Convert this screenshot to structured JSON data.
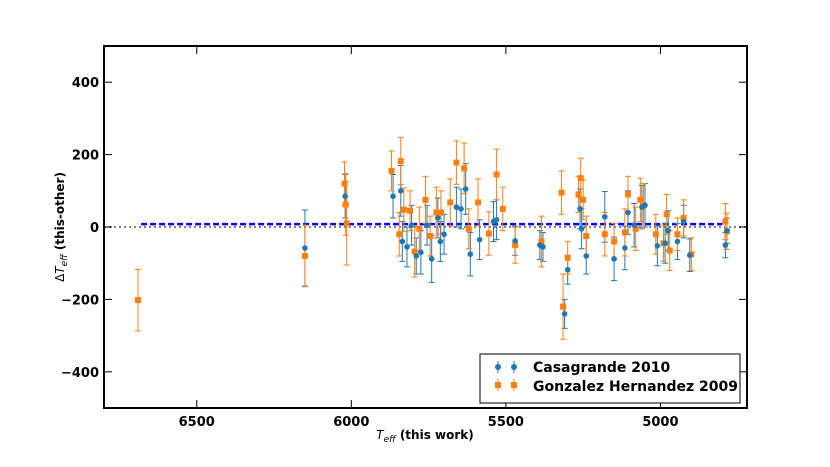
{
  "chart_data": {
    "type": "scatter",
    "xlabel": "T_eff (this work)",
    "ylabel": "ΔT_eff (this-other)",
    "xlim": [
      6800,
      4720
    ],
    "ylim": [
      -500,
      500
    ],
    "x_ticks": [
      6500,
      6000,
      5500,
      5000
    ],
    "y_ticks": [
      -400,
      -200,
      0,
      200,
      400
    ],
    "legend_position": "lower-right",
    "reference_lines": [
      {
        "name": "zero",
        "y": 0,
        "color": "#808080",
        "style": "dotted"
      },
      {
        "name": "mean offset",
        "y": 8,
        "x_range": [
          6680,
          4800
        ],
        "color": "#0000ff",
        "style": "dashed"
      }
    ],
    "series": [
      {
        "name": "Casagrande 2010",
        "marker": "circle",
        "color": "#1f77b4",
        "points": [
          {
            "x": 6150,
            "y": -58,
            "err": 105
          },
          {
            "x": 6020,
            "y": 85,
            "err": 60
          },
          {
            "x": 5865,
            "y": 85,
            "err": 60
          },
          {
            "x": 5840,
            "y": 100,
            "err": 70
          },
          {
            "x": 5835,
            "y": -40,
            "err": 55
          },
          {
            "x": 5820,
            "y": -55,
            "err": 55
          },
          {
            "x": 5805,
            "y": 5,
            "err": 55
          },
          {
            "x": 5790,
            "y": -80,
            "err": 50
          },
          {
            "x": 5775,
            "y": -70,
            "err": 60
          },
          {
            "x": 5755,
            "y": 5,
            "err": 55
          },
          {
            "x": 5740,
            "y": -88,
            "err": 65
          },
          {
            "x": 5720,
            "y": 25,
            "err": 55
          },
          {
            "x": 5712,
            "y": -40,
            "err": 55
          },
          {
            "x": 5700,
            "y": -20,
            "err": 55
          },
          {
            "x": 5660,
            "y": 55,
            "err": 55
          },
          {
            "x": 5645,
            "y": 50,
            "err": 55
          },
          {
            "x": 5630,
            "y": 105,
            "err": 70
          },
          {
            "x": 5615,
            "y": -75,
            "err": 60
          },
          {
            "x": 5585,
            "y": -35,
            "err": 55
          },
          {
            "x": 5540,
            "y": 15,
            "err": 55
          },
          {
            "x": 5530,
            "y": 20,
            "err": 55
          },
          {
            "x": 5470,
            "y": -38,
            "err": 40
          },
          {
            "x": 5390,
            "y": -50,
            "err": 40
          },
          {
            "x": 5380,
            "y": -55,
            "err": 40
          },
          {
            "x": 5310,
            "y": -240,
            "err": 40
          },
          {
            "x": 5300,
            "y": -118,
            "err": 40
          },
          {
            "x": 5260,
            "y": 50,
            "err": 55
          },
          {
            "x": 5255,
            "y": -5,
            "err": 55
          },
          {
            "x": 5240,
            "y": -80,
            "err": 50
          },
          {
            "x": 5180,
            "y": 28,
            "err": 70
          },
          {
            "x": 5150,
            "y": -88,
            "err": 60
          },
          {
            "x": 5115,
            "y": -58,
            "err": 60
          },
          {
            "x": 5105,
            "y": 40,
            "err": 60
          },
          {
            "x": 5085,
            "y": 5,
            "err": 60
          },
          {
            "x": 5060,
            "y": 55,
            "err": 60
          },
          {
            "x": 5050,
            "y": 60,
            "err": 60
          },
          {
            "x": 5010,
            "y": -52,
            "err": 55
          },
          {
            "x": 4985,
            "y": -45,
            "err": 55
          },
          {
            "x": 4975,
            "y": -10,
            "err": 55
          },
          {
            "x": 4945,
            "y": -40,
            "err": 50
          },
          {
            "x": 4925,
            "y": 15,
            "err": 45
          },
          {
            "x": 4905,
            "y": -78,
            "err": 45
          },
          {
            "x": 4790,
            "y": -50,
            "err": 35
          },
          {
            "x": 4785,
            "y": -10,
            "err": 35
          }
        ]
      },
      {
        "name": "Gonzalez Hernandez 2009",
        "marker": "square",
        "color": "#ff7f0e",
        "points": [
          {
            "x": 6690,
            "y": -202,
            "err": 85
          },
          {
            "x": 6150,
            "y": -80,
            "err": 85
          },
          {
            "x": 6022,
            "y": 120,
            "err": 60
          },
          {
            "x": 6018,
            "y": 62,
            "err": 85
          },
          {
            "x": 6015,
            "y": 10,
            "err": 115
          },
          {
            "x": 5870,
            "y": 155,
            "err": 55
          },
          {
            "x": 5845,
            "y": -20,
            "err": 60
          },
          {
            "x": 5840,
            "y": 182,
            "err": 65
          },
          {
            "x": 5830,
            "y": 48,
            "err": 60
          },
          {
            "x": 5810,
            "y": 45,
            "err": 55
          },
          {
            "x": 5795,
            "y": -68,
            "err": 70
          },
          {
            "x": 5780,
            "y": -5,
            "err": 60
          },
          {
            "x": 5760,
            "y": 75,
            "err": 65
          },
          {
            "x": 5745,
            "y": -25,
            "err": 55
          },
          {
            "x": 5725,
            "y": 40,
            "err": 70
          },
          {
            "x": 5710,
            "y": 40,
            "err": 60
          },
          {
            "x": 5680,
            "y": 68,
            "err": 65
          },
          {
            "x": 5660,
            "y": 178,
            "err": 60
          },
          {
            "x": 5635,
            "y": 162,
            "err": 70
          },
          {
            "x": 5620,
            "y": -5,
            "err": 55
          },
          {
            "x": 5590,
            "y": 68,
            "err": 65
          },
          {
            "x": 5555,
            "y": -18,
            "err": 60
          },
          {
            "x": 5530,
            "y": 145,
            "err": 70
          },
          {
            "x": 5510,
            "y": 50,
            "err": 60
          },
          {
            "x": 5470,
            "y": -50,
            "err": 50
          },
          {
            "x": 5385,
            "y": -40,
            "err": 70
          },
          {
            "x": 5320,
            "y": 95,
            "err": 60
          },
          {
            "x": 5315,
            "y": -220,
            "err": 90
          },
          {
            "x": 5300,
            "y": -85,
            "err": 45
          },
          {
            "x": 5265,
            "y": 90,
            "err": 50
          },
          {
            "x": 5258,
            "y": 135,
            "err": 55
          },
          {
            "x": 5250,
            "y": 75,
            "err": 55
          },
          {
            "x": 5240,
            "y": -25,
            "err": 55
          },
          {
            "x": 5180,
            "y": -20,
            "err": 60
          },
          {
            "x": 5150,
            "y": -40,
            "err": 50
          },
          {
            "x": 5115,
            "y": -15,
            "err": 65
          },
          {
            "x": 5105,
            "y": 90,
            "err": 50
          },
          {
            "x": 5080,
            "y": -5,
            "err": 60
          },
          {
            "x": 5065,
            "y": 75,
            "err": 60
          },
          {
            "x": 5055,
            "y": 60,
            "err": 60
          },
          {
            "x": 5015,
            "y": -20,
            "err": 55
          },
          {
            "x": 4990,
            "y": -45,
            "err": 50
          },
          {
            "x": 4980,
            "y": 35,
            "err": 55
          },
          {
            "x": 4970,
            "y": -65,
            "err": 55
          },
          {
            "x": 4945,
            "y": -20,
            "err": 45
          },
          {
            "x": 4925,
            "y": 25,
            "err": 50
          },
          {
            "x": 4900,
            "y": -75,
            "err": 45
          },
          {
            "x": 4790,
            "y": 15,
            "err": 50
          },
          {
            "x": 4785,
            "y": -12,
            "err": 50
          }
        ]
      }
    ]
  },
  "legend": {
    "entries": [
      "Casagrande 2010",
      "Gonzalez Hernandez 2009"
    ]
  },
  "axes": {
    "x_tick_labels": [
      "6500",
      "6000",
      "5500",
      "5000"
    ],
    "y_tick_labels": [
      "−400",
      "−200",
      "0",
      "200",
      "400"
    ]
  }
}
